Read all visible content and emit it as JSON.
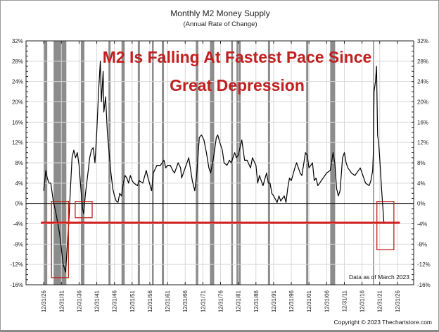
{
  "chart_data": {
    "type": "line",
    "title": "Monthly M2 Money Supply",
    "subtitle": "(Annual Rate of Change)",
    "annotation_lines": [
      "M2 Is Falling At Fastest Pace Since",
      "Great Depression"
    ],
    "data_note": "Data as of March 2023",
    "copyright": "Copyright © 2023 Thechartstore.com",
    "xlabel": "",
    "ylabel": "",
    "ylim": [
      -16,
      32
    ],
    "xlim": [
      1922,
      2031.6
    ],
    "grid": true,
    "y_ticks": [
      32,
      28,
      24,
      20,
      16,
      12,
      8,
      4,
      0,
      -4,
      -8,
      -12,
      -16
    ],
    "y_tick_labels": [
      "32%",
      "28%",
      "24%",
      "20%",
      "16%",
      "12%",
      "8%",
      "4%",
      "0%",
      "-4%",
      "-8%",
      "-12%",
      "-16%"
    ],
    "x_ticks": [
      1927,
      1932,
      1937,
      1942,
      1947,
      1952,
      1957,
      1962,
      1967,
      1972,
      1977,
      1982,
      1987,
      1992,
      1997,
      2002,
      2007,
      2012,
      2017,
      2022,
      2027
    ],
    "x_tick_labels": [
      "12/31/26",
      "12/31/31",
      "12/31/36",
      "12/31/41",
      "12/31/46",
      "12/31/51",
      "12/31/56",
      "12/31/61",
      "12/31/66",
      "12/31/71",
      "12/31/76",
      "12/31/81",
      "12/31/86",
      "12/31/91",
      "12/31/96",
      "12/31/01",
      "12/31/06",
      "12/31/11",
      "12/31/16",
      "12/31/21",
      "12/31/26"
    ],
    "series": [
      {
        "name": "M2 annual rate of change (%)",
        "color": "#000000",
        "x": [
          1927,
          1927.6,
          1928,
          1928.5,
          1929,
          1929.7,
          1930.5,
          1931.5,
          1932.5,
          1933.2,
          1933.6,
          1934,
          1934.5,
          1935,
          1935.5,
          1936,
          1936.5,
          1937,
          1937.5,
          1938,
          1938.3,
          1938.8,
          1939.5,
          1940,
          1940.5,
          1941,
          1941.5,
          1942,
          1942.5,
          1943,
          1943.3,
          1943.8,
          1944,
          1944.5,
          1945,
          1945.5,
          1946,
          1946.5,
          1947,
          1947.5,
          1948,
          1948.5,
          1949,
          1949.5,
          1950,
          1950.5,
          1951,
          1951.5,
          1952,
          1952.5,
          1953.5,
          1954,
          1955,
          1956,
          1956.5,
          1957.5,
          1958,
          1959,
          1960,
          1961,
          1961.5,
          1962,
          1962.8,
          1963.5,
          1964,
          1965,
          1965.7,
          1966,
          1967,
          1968,
          1969,
          1969.7,
          1970.3,
          1971,
          1971.6,
          1972.3,
          1973,
          1973.7,
          1974.2,
          1975,
          1975.8,
          1976.2,
          1976.8,
          1977.5,
          1978,
          1978.8,
          1979.5,
          1980,
          1980.5,
          1981,
          1981.5,
          1982,
          1983,
          1983.8,
          1984.5,
          1985.5,
          1986,
          1987,
          1987.5,
          1988,
          1989,
          1990,
          1990.5,
          1991,
          1991.5,
          1992,
          1993,
          1993.5,
          1994,
          1995,
          1995.5,
          1996,
          1996.5,
          1997,
          1998,
          1998.5,
          1999,
          1999.5,
          2000,
          2001,
          2001.5,
          2002,
          2002.5,
          2003,
          2003.5,
          2004,
          2004.5,
          2005,
          2006,
          2007,
          2008,
          2008.8,
          2009.3,
          2009.8,
          2010.3,
          2010.8,
          2011.5,
          2012,
          2012.5,
          2013,
          2014,
          2015,
          2016,
          2016.5,
          2017,
          2018,
          2019,
          2019.5,
          2020,
          2020.2,
          2020.4,
          2020.8,
          2021.1,
          2021.4,
          2021.7,
          2022,
          2022.5,
          2022.9,
          2023.2
        ],
        "y": [
          2.5,
          6.5,
          5,
          4,
          4,
          0.5,
          -2,
          -6,
          -12,
          -13.5,
          -9,
          -5,
          2,
          9,
          10.5,
          9,
          10,
          7.5,
          3,
          -1,
          -2,
          2,
          6,
          9,
          10.5,
          11,
          8,
          14,
          22,
          28,
          20,
          26,
          18,
          21,
          14,
          10,
          6,
          3,
          1.5,
          0.5,
          0.2,
          2,
          1.5,
          4,
          5.5,
          5,
          4,
          5.5,
          4.5,
          4,
          3.5,
          4.5,
          4,
          6.5,
          5,
          2.5,
          6,
          7.5,
          7.5,
          8.5,
          7,
          7.5,
          7.5,
          6.5,
          6,
          8,
          7,
          5,
          7,
          9,
          4.5,
          2.5,
          6,
          13,
          13.5,
          12.5,
          10,
          7,
          6,
          9,
          13,
          13.5,
          12,
          10.5,
          8,
          7.5,
          8.5,
          8,
          9,
          10,
          9,
          9.5,
          12.5,
          8.5,
          8.5,
          7,
          9,
          7.5,
          4,
          5.5,
          3.5,
          6,
          4,
          4,
          2,
          1.5,
          0.2,
          1.5,
          0.5,
          1.5,
          0.2,
          3,
          5,
          4.5,
          7,
          8,
          7,
          6,
          5.5,
          10,
          9.5,
          7,
          7.5,
          8,
          4.5,
          5,
          3.5,
          4,
          5,
          6,
          6.5,
          10,
          8,
          3,
          1.5,
          2.5,
          9,
          10,
          8,
          7,
          6,
          5.5,
          6.5,
          7,
          6,
          4,
          3.5,
          4.5,
          6.5,
          10,
          22,
          24,
          27,
          13.5,
          12,
          9,
          3,
          -1,
          -4
        ]
      }
    ],
    "recessions": [
      [
        1927,
        1928
      ],
      [
        1929.8,
        1933.4
      ],
      [
        1937.5,
        1938.5
      ],
      [
        1945.3,
        1945.9
      ],
      [
        1949,
        1949.9
      ],
      [
        1953.6,
        1954.2
      ],
      [
        1957.6,
        1958.1
      ],
      [
        1960.4,
        1961
      ],
      [
        1970,
        1970.7
      ],
      [
        1974,
        1975.2
      ],
      [
        1980,
        1980.5
      ],
      [
        1981.5,
        1982.7
      ],
      [
        1990.4,
        1991
      ],
      [
        2001.2,
        2001.8
      ],
      [
        2008,
        2009.4
      ],
      [
        2020.1,
        2020.3
      ]
    ],
    "reference_line": {
      "value": -3.8,
      "x_range": [
        1926.2,
        2027.7
      ],
      "color": "#d3201f"
    },
    "highlight_boxes": [
      {
        "x_range": [
          1929.2,
          1934.0
        ],
        "y_range": [
          -14.6,
          0.4
        ]
      },
      {
        "x_range": [
          1935.9,
          1940.7
        ],
        "y_range": [
          -2.8,
          0.4
        ]
      },
      {
        "x_range": [
          2021.2,
          2026.0
        ],
        "y_range": [
          -9.1,
          0.4
        ]
      }
    ],
    "colors": {
      "recession": "#8c8c8c",
      "grid": "#d8d8d8",
      "annotation": "#c0201f",
      "box": "#c0201f"
    }
  }
}
